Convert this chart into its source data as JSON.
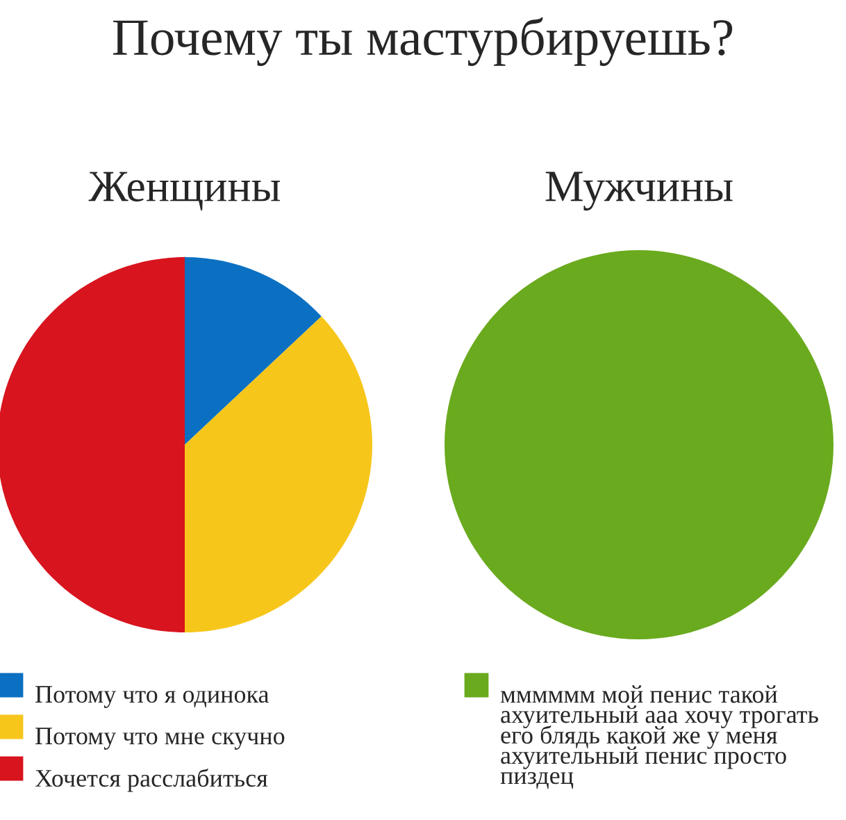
{
  "chart_data": [
    {
      "type": "pie",
      "title": "Почему ты мастурбируешь?",
      "subtitle": "Женщины",
      "legend": "bottom",
      "categories": [
        "Потому что я одинока",
        "Потому что мне скучно",
        "Хочется расслабиться"
      ],
      "values": [
        13,
        37,
        50
      ],
      "colors": [
        "#0b70c2",
        "#f7c61a",
        "#d8141e"
      ]
    },
    {
      "type": "pie",
      "subtitle": "Мужчины",
      "legend": "bottom",
      "categories": [
        "мммммм мой пенис такой ахуительный ааа хочу трогать его блядь какой же у меня ахуительный пенис просто пиздец"
      ],
      "values": [
        100
      ],
      "colors": [
        "#6aaa1e"
      ]
    }
  ]
}
